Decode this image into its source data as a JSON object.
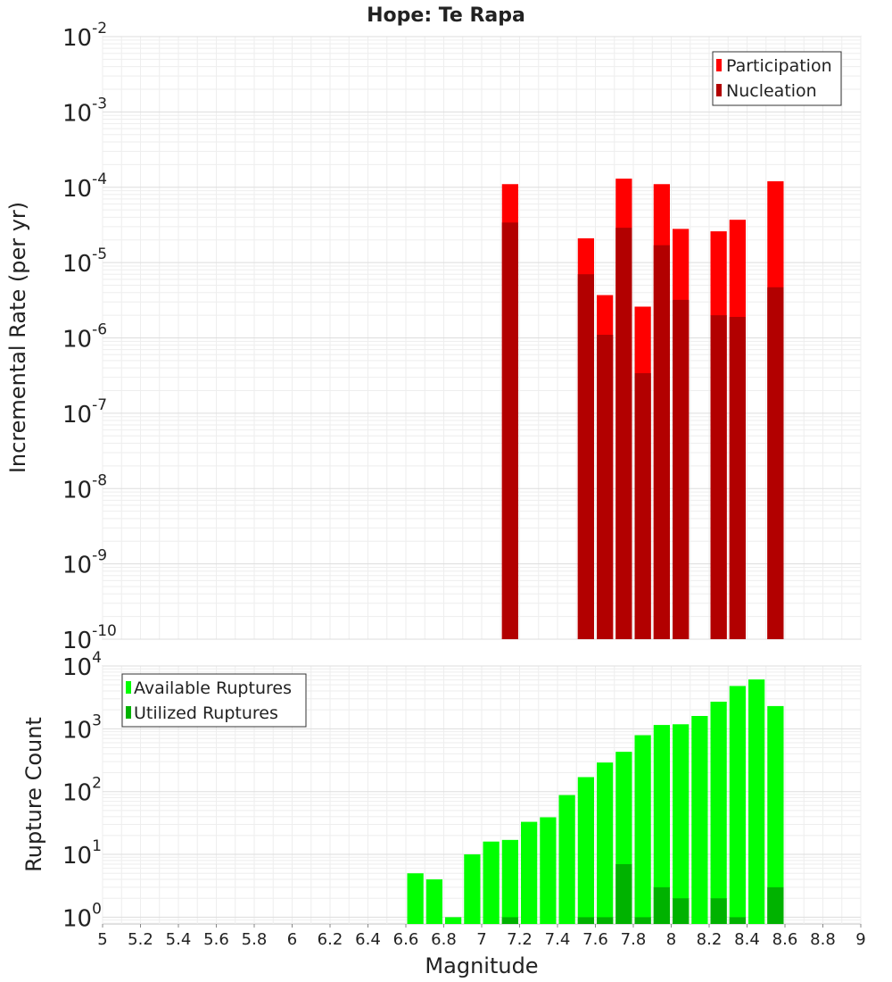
{
  "chart_data": [
    {
      "type": "bar",
      "title": "Hope: Te Rapa",
      "xlabel": "",
      "ylabel": "Incremental Rate (per yr)",
      "yscale": "log",
      "ylim": [
        1e-10,
        0.01
      ],
      "xlim": [
        5,
        9
      ],
      "grid": true,
      "legend_position": "top-right",
      "colors": {
        "participation": "#ff0000",
        "nucleation": "#b20000"
      },
      "x": [
        7.15,
        7.55,
        7.65,
        7.75,
        7.85,
        7.95,
        8.05,
        8.25,
        8.35,
        8.55
      ],
      "series": [
        {
          "name": "Participation",
          "values": [
            0.00011,
            2.1e-05,
            3.7e-06,
            0.00013,
            2.6e-06,
            0.00011,
            2.8e-05,
            2.6e-05,
            3.7e-05,
            0.00012
          ]
        },
        {
          "name": "Nucleation",
          "values": [
            3.4e-05,
            7e-06,
            1.1e-06,
            2.9e-05,
            3.4e-07,
            1.7e-05,
            3.2e-06,
            2e-06,
            1.9e-06,
            4.7e-06
          ]
        }
      ],
      "ytick_exponents": [
        -10,
        -9,
        -8,
        -7,
        -6,
        -5,
        -4,
        -3,
        -2
      ]
    },
    {
      "type": "bar",
      "title": "",
      "xlabel": "Magnitude",
      "ylabel": "Rupture Count",
      "yscale": "log",
      "ylim": [
        0.78,
        10000.0
      ],
      "xlim": [
        5,
        9
      ],
      "grid": true,
      "legend_position": "top-left",
      "colors": {
        "available": "#00ff00",
        "utilized": "#00b200"
      },
      "x": [
        6.65,
        6.75,
        6.85,
        6.95,
        7.05,
        7.15,
        7.25,
        7.35,
        7.45,
        7.55,
        7.65,
        7.75,
        7.85,
        7.95,
        8.05,
        8.15,
        8.25,
        8.35,
        8.45,
        8.55
      ],
      "series": [
        {
          "name": "Available Ruptures",
          "values": [
            5,
            4,
            1,
            10,
            16,
            17,
            33,
            39,
            88,
            170,
            290,
            430,
            790,
            1150,
            1180,
            1600,
            2700,
            4800,
            6100,
            2300
          ]
        },
        {
          "name": "Utilized Ruptures",
          "values": [
            null,
            null,
            null,
            null,
            null,
            1,
            null,
            null,
            null,
            1,
            1,
            7,
            1,
            3,
            2,
            null,
            2,
            1,
            null,
            3
          ]
        }
      ],
      "ytick_exponents": [
        0,
        1,
        2,
        3,
        4
      ],
      "xticks": [
        "5",
        "5.2",
        "5.4",
        "5.6",
        "5.8",
        "6",
        "6.2",
        "6.4",
        "6.6",
        "6.8",
        "7",
        "7.2",
        "7.4",
        "7.6",
        "7.8",
        "8",
        "8.2",
        "8.4",
        "8.6",
        "8.8",
        "9"
      ]
    }
  ]
}
